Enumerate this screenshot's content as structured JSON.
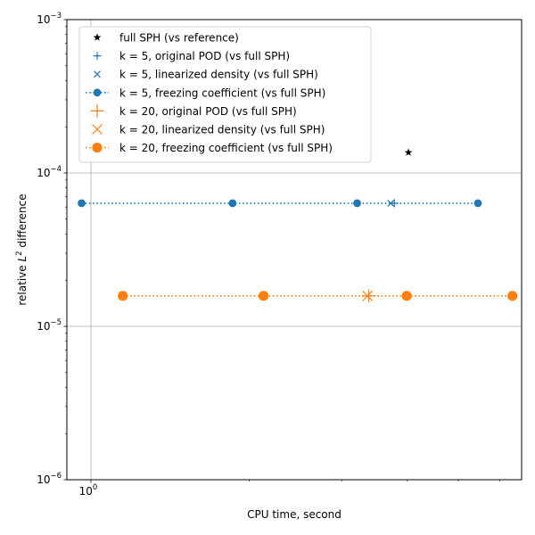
{
  "chart_data": {
    "type": "scatter",
    "title": "",
    "xlabel": "CPU time, second",
    "ylabel_prefix": "relative ",
    "ylabel_symbol": "L",
    "ylabel_sup": "2",
    "ylabel_suffix": " difference",
    "xscale": "log",
    "yscale": "log",
    "xlim": [
      0.9,
      6.6
    ],
    "ylim": [
      1e-06,
      0.001
    ],
    "grid": true,
    "legend_position": "top-left",
    "x_ticks": [
      {
        "value": 1.0,
        "label": "10",
        "sup": "0"
      }
    ],
    "y_ticks": [
      {
        "value": 1e-06,
        "base": "10",
        "sup": "−6"
      },
      {
        "value": 1e-05,
        "base": "10",
        "sup": "−5"
      },
      {
        "value": 0.0001,
        "base": "10",
        "sup": "−4"
      },
      {
        "value": 0.001,
        "base": "10",
        "sup": "−3"
      }
    ],
    "x_minor_ticks": [
      2,
      3,
      4,
      5,
      6
    ],
    "series": [
      {
        "name": "full SPH (vs reference)",
        "color": "#000000",
        "marker": "star",
        "line": "none",
        "size": "small",
        "points": [
          {
            "x": 4.02,
            "y": 0.000136
          }
        ]
      },
      {
        "name": "k = 5, original POD (vs full SPH)",
        "color": "#1f77b4",
        "marker": "plus",
        "line": "none",
        "size": "small",
        "points": [
          {
            "x": 3.78,
            "y": 6.35e-05
          }
        ]
      },
      {
        "name": "k = 5, linearized density (vs full SPH)",
        "color": "#1f77b4",
        "marker": "x",
        "line": "none",
        "size": "small",
        "points": [
          {
            "x": 3.72,
            "y": 6.35e-05
          }
        ]
      },
      {
        "name": "k = 5, freezing coefficient (vs full SPH)",
        "color": "#1f77b4",
        "marker": "circle",
        "line": "dotted",
        "size": "small",
        "points": [
          {
            "x": 0.96,
            "y": 6.35e-05
          },
          {
            "x": 1.86,
            "y": 6.35e-05
          },
          {
            "x": 3.21,
            "y": 6.35e-05
          },
          {
            "x": 5.45,
            "y": 6.35e-05
          }
        ]
      },
      {
        "name": "k = 20, original POD (vs full SPH)",
        "color": "#ff7f0e",
        "marker": "plus",
        "line": "none",
        "size": "large",
        "points": [
          {
            "x": 3.38,
            "y": 1.58e-05
          }
        ]
      },
      {
        "name": "k = 20, linearized density (vs full SPH)",
        "color": "#ff7f0e",
        "marker": "x",
        "line": "none",
        "size": "large",
        "points": [
          {
            "x": 3.36,
            "y": 1.58e-05
          }
        ]
      },
      {
        "name": "k = 20, freezing coefficient (vs full SPH)",
        "color": "#ff7f0e",
        "marker": "circle",
        "line": "dotted",
        "size": "large",
        "points": [
          {
            "x": 1.15,
            "y": 1.58e-05
          },
          {
            "x": 2.13,
            "y": 1.58e-05
          },
          {
            "x": 3.99,
            "y": 1.58e-05
          },
          {
            "x": 6.34,
            "y": 1.58e-05
          }
        ]
      }
    ]
  }
}
